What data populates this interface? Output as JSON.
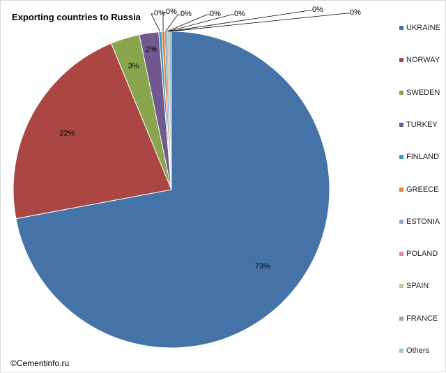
{
  "chart_data": {
    "type": "pie",
    "title": "Exporting countries to Russia",
    "categories": [
      "UKRAINE",
      "NORWAY",
      "SWEDEN",
      "TURKEY",
      "FINLAND",
      "GREECE",
      "ESTONIA",
      "POLAND",
      "SPAIN",
      "FRANCE",
      "Others"
    ],
    "values": [
      73,
      22,
      3,
      2,
      0.3,
      0.3,
      0.2,
      0.1,
      0.1,
      0.1,
      0.2
    ],
    "data_labels": [
      "73%",
      "22%",
      "3%",
      "2%",
      "0%",
      "0%",
      "0%",
      "0%",
      "0%",
      "0%",
      "0%"
    ],
    "colors": [
      "#4572a7",
      "#aa4643",
      "#89a54e",
      "#71588f",
      "#4198af",
      "#db843d",
      "#93a9cf",
      "#d19392",
      "#b9cd96",
      "#a99bbd",
      "#92c3d4"
    ],
    "legend_position": "right"
  },
  "source": "©Cementinfo.ru"
}
